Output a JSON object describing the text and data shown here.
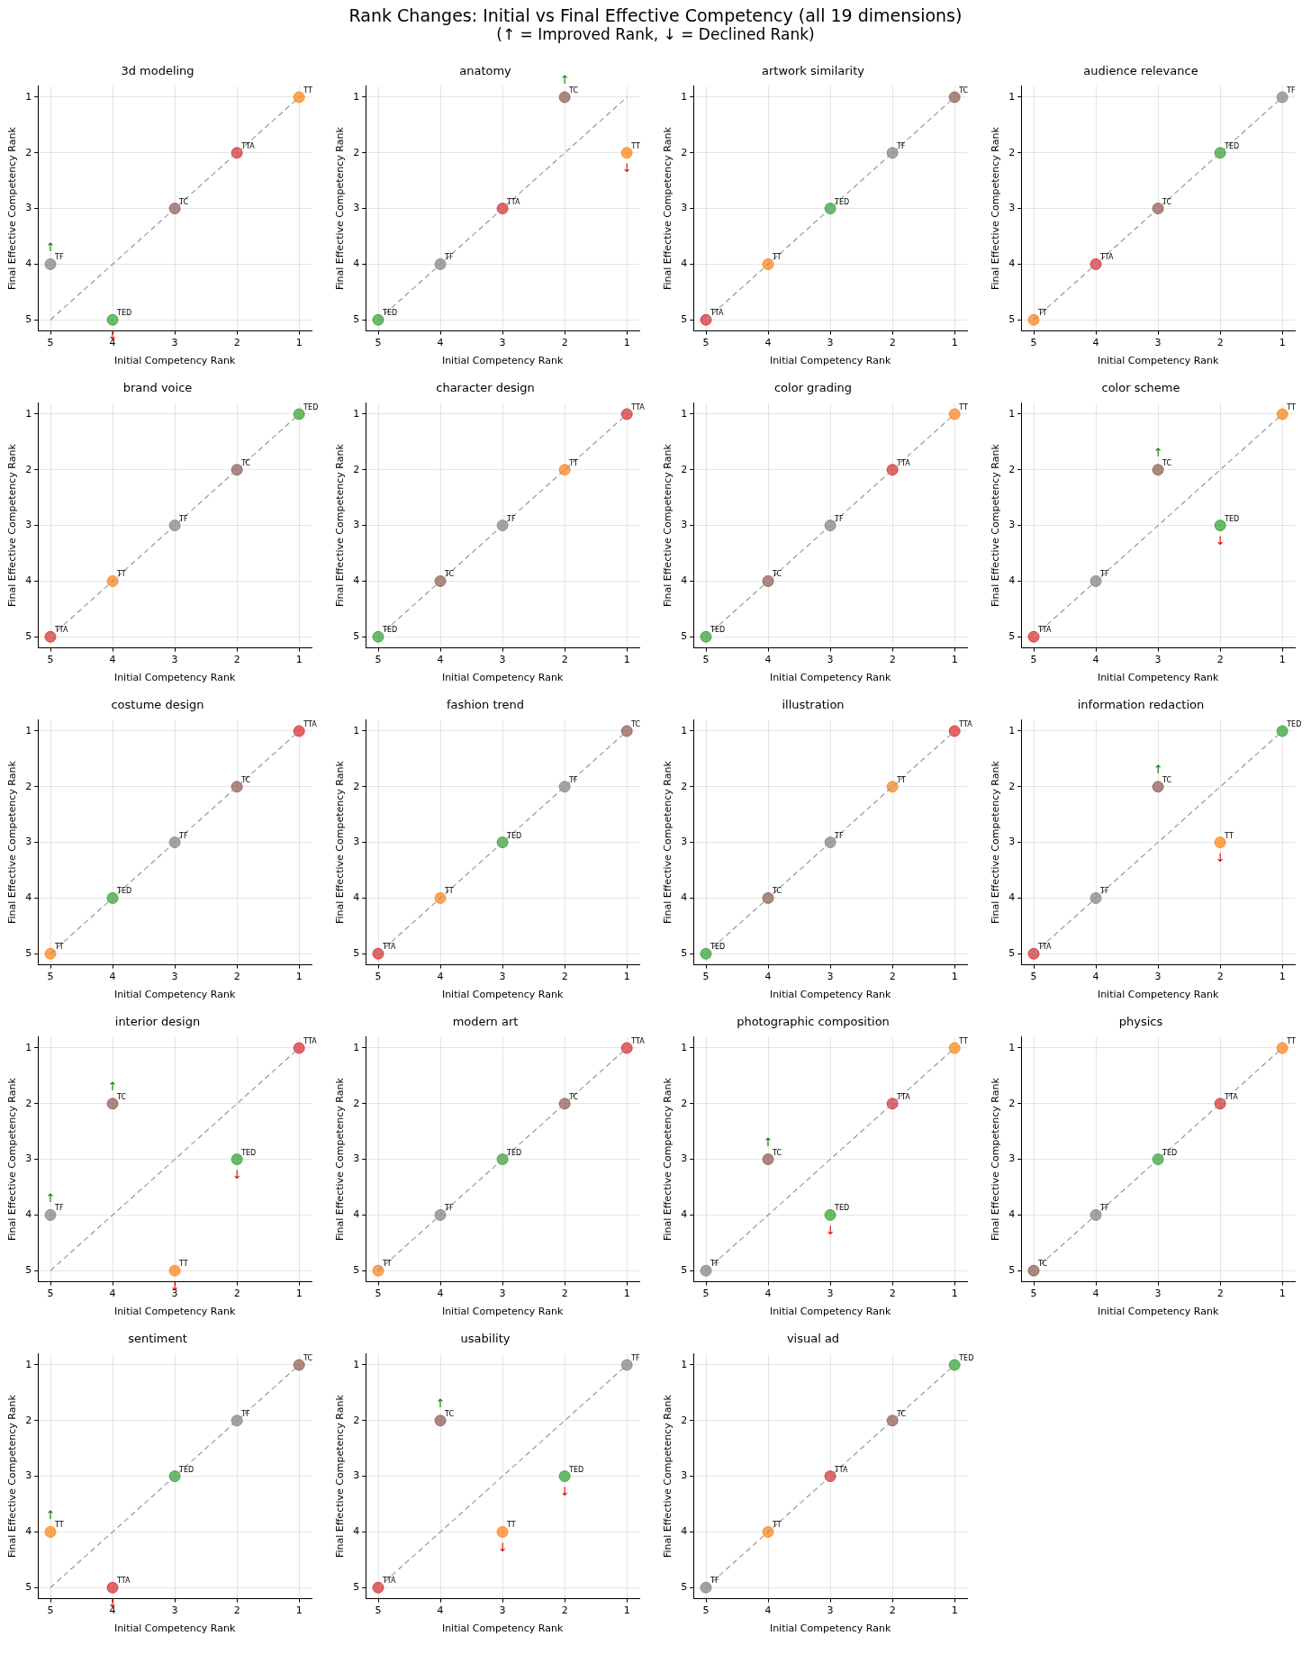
{
  "chart_data": [
    {
      "type": "other",
      "title": "Rank Changes: Initial vs Final Effective Competency (all 19 dimensions)",
      "subtitle": "(↑ = Improved Rank, ↓ = Declined Rank)"
    },
    {
      "type": "scatter",
      "title": "3d modeling",
      "xlabel": "Initial Competency Rank",
      "ylabel": "Final Effective Competency Rank",
      "xlim": [
        5.2,
        0.8
      ],
      "ylim": [
        5.2,
        0.8
      ],
      "xticks": [
        5,
        4,
        3,
        2,
        1
      ],
      "yticks": [
        5,
        4,
        3,
        2,
        1
      ],
      "grid": true,
      "marker": "circle",
      "series": [
        {
          "type": "line",
          "color": "#999999",
          "line_style": "dashed",
          "marker": "none",
          "x": [
            5,
            1
          ],
          "values": [
            5,
            1
          ]
        },
        {
          "name": "TT",
          "color": "#ff7f0e",
          "x": [
            1
          ],
          "values": [
            1
          ]
        },
        {
          "name": "TC",
          "color": "#8c564b",
          "x": [
            3
          ],
          "values": [
            3
          ]
        },
        {
          "name": "TF",
          "color": "#7f7f7f",
          "x": [
            5
          ],
          "values": [
            4
          ]
        },
        {
          "name": "TED",
          "color": "#2ca02c",
          "x": [
            4
          ],
          "values": [
            5
          ]
        },
        {
          "name": "TTA",
          "color": "#d62728",
          "x": [
            2
          ],
          "values": [
            2
          ]
        }
      ],
      "annotations": [
        {
          "text": "↑",
          "x": 5,
          "y": 4
        },
        {
          "text": "↓",
          "x": 4,
          "y": 5
        }
      ]
    },
    {
      "type": "scatter",
      "title": "anatomy",
      "xlabel": "Initial Competency Rank",
      "ylabel": "Final Effective Competency Rank",
      "xlim": [
        5.2,
        0.8
      ],
      "ylim": [
        5.2,
        0.8
      ],
      "xticks": [
        5,
        4,
        3,
        2,
        1
      ],
      "yticks": [
        5,
        4,
        3,
        2,
        1
      ],
      "grid": true,
      "marker": "circle",
      "series": [
        {
          "type": "line",
          "color": "#999999",
          "line_style": "dashed",
          "marker": "none",
          "x": [
            5,
            1
          ],
          "values": [
            5,
            1
          ]
        },
        {
          "name": "TT",
          "color": "#ff7f0e",
          "x": [
            1
          ],
          "values": [
            2
          ]
        },
        {
          "name": "TC",
          "color": "#8c564b",
          "x": [
            2
          ],
          "values": [
            1
          ]
        },
        {
          "name": "TF",
          "color": "#7f7f7f",
          "x": [
            4
          ],
          "values": [
            4
          ]
        },
        {
          "name": "TED",
          "color": "#2ca02c",
          "x": [
            5
          ],
          "values": [
            5
          ]
        },
        {
          "name": "TTA",
          "color": "#d62728",
          "x": [
            3
          ],
          "values": [
            3
          ]
        }
      ],
      "annotations": [
        {
          "text": "↑",
          "x": 2,
          "y": 1
        },
        {
          "text": "↓",
          "x": 1,
          "y": 2
        }
      ]
    },
    {
      "type": "scatter",
      "title": "artwork similarity",
      "xlabel": "Initial Competency Rank",
      "ylabel": "Final Effective Competency Rank",
      "xlim": [
        5.2,
        0.8
      ],
      "ylim": [
        5.2,
        0.8
      ],
      "xticks": [
        5,
        4,
        3,
        2,
        1
      ],
      "yticks": [
        5,
        4,
        3,
        2,
        1
      ],
      "grid": true,
      "marker": "circle",
      "series": [
        {
          "type": "line",
          "color": "#999999",
          "line_style": "dashed",
          "marker": "none",
          "x": [
            5,
            1
          ],
          "values": [
            5,
            1
          ]
        },
        {
          "name": "TT",
          "color": "#ff7f0e",
          "x": [
            4
          ],
          "values": [
            4
          ]
        },
        {
          "name": "TC",
          "color": "#8c564b",
          "x": [
            1
          ],
          "values": [
            1
          ]
        },
        {
          "name": "TF",
          "color": "#7f7f7f",
          "x": [
            2
          ],
          "values": [
            2
          ]
        },
        {
          "name": "TED",
          "color": "#2ca02c",
          "x": [
            3
          ],
          "values": [
            3
          ]
        },
        {
          "name": "TTA",
          "color": "#d62728",
          "x": [
            5
          ],
          "values": [
            5
          ]
        }
      ]
    },
    {
      "type": "scatter",
      "title": "audience relevance",
      "xlabel": "Initial Competency Rank",
      "ylabel": "Final Effective Competency Rank",
      "xlim": [
        5.2,
        0.8
      ],
      "ylim": [
        5.2,
        0.8
      ],
      "xticks": [
        5,
        4,
        3,
        2,
        1
      ],
      "yticks": [
        5,
        4,
        3,
        2,
        1
      ],
      "grid": true,
      "marker": "circle",
      "series": [
        {
          "type": "line",
          "color": "#999999",
          "line_style": "dashed",
          "marker": "none",
          "x": [
            5,
            1
          ],
          "values": [
            5,
            1
          ]
        },
        {
          "name": "TT",
          "color": "#ff7f0e",
          "x": [
            5
          ],
          "values": [
            5
          ]
        },
        {
          "name": "TC",
          "color": "#8c564b",
          "x": [
            3
          ],
          "values": [
            3
          ]
        },
        {
          "name": "TF",
          "color": "#7f7f7f",
          "x": [
            1
          ],
          "values": [
            1
          ]
        },
        {
          "name": "TED",
          "color": "#2ca02c",
          "x": [
            2
          ],
          "values": [
            2
          ]
        },
        {
          "name": "TTA",
          "color": "#d62728",
          "x": [
            4
          ],
          "values": [
            4
          ]
        }
      ]
    },
    {
      "type": "scatter",
      "title": "brand voice",
      "xlabel": "Initial Competency Rank",
      "ylabel": "Final Effective Competency Rank",
      "xlim": [
        5.2,
        0.8
      ],
      "ylim": [
        5.2,
        0.8
      ],
      "xticks": [
        5,
        4,
        3,
        2,
        1
      ],
      "yticks": [
        5,
        4,
        3,
        2,
        1
      ],
      "grid": true,
      "marker": "circle",
      "series": [
        {
          "type": "line",
          "color": "#999999",
          "line_style": "dashed",
          "marker": "none",
          "x": [
            5,
            1
          ],
          "values": [
            5,
            1
          ]
        },
        {
          "name": "TT",
          "color": "#ff7f0e",
          "x": [
            4
          ],
          "values": [
            4
          ]
        },
        {
          "name": "TC",
          "color": "#8c564b",
          "x": [
            2
          ],
          "values": [
            2
          ]
        },
        {
          "name": "TF",
          "color": "#7f7f7f",
          "x": [
            3
          ],
          "values": [
            3
          ]
        },
        {
          "name": "TED",
          "color": "#2ca02c",
          "x": [
            1
          ],
          "values": [
            1
          ]
        },
        {
          "name": "TTA",
          "color": "#d62728",
          "x": [
            5
          ],
          "values": [
            5
          ]
        }
      ]
    },
    {
      "type": "scatter",
      "title": "character design",
      "xlabel": "Initial Competency Rank",
      "ylabel": "Final Effective Competency Rank",
      "xlim": [
        5.2,
        0.8
      ],
      "ylim": [
        5.2,
        0.8
      ],
      "xticks": [
        5,
        4,
        3,
        2,
        1
      ],
      "yticks": [
        5,
        4,
        3,
        2,
        1
      ],
      "grid": true,
      "marker": "circle",
      "series": [
        {
          "type": "line",
          "color": "#999999",
          "line_style": "dashed",
          "marker": "none",
          "x": [
            5,
            1
          ],
          "values": [
            5,
            1
          ]
        },
        {
          "name": "TT",
          "color": "#ff7f0e",
          "x": [
            2
          ],
          "values": [
            2
          ]
        },
        {
          "name": "TC",
          "color": "#8c564b",
          "x": [
            4
          ],
          "values": [
            4
          ]
        },
        {
          "name": "TF",
          "color": "#7f7f7f",
          "x": [
            3
          ],
          "values": [
            3
          ]
        },
        {
          "name": "TED",
          "color": "#2ca02c",
          "x": [
            5
          ],
          "values": [
            5
          ]
        },
        {
          "name": "TTA",
          "color": "#d62728",
          "x": [
            1
          ],
          "values": [
            1
          ]
        }
      ]
    },
    {
      "type": "scatter",
      "title": "color grading",
      "xlabel": "Initial Competency Rank",
      "ylabel": "Final Effective Competency Rank",
      "xlim": [
        5.2,
        0.8
      ],
      "ylim": [
        5.2,
        0.8
      ],
      "xticks": [
        5,
        4,
        3,
        2,
        1
      ],
      "yticks": [
        5,
        4,
        3,
        2,
        1
      ],
      "grid": true,
      "marker": "circle",
      "series": [
        {
          "type": "line",
          "color": "#999999",
          "line_style": "dashed",
          "marker": "none",
          "x": [
            5,
            1
          ],
          "values": [
            5,
            1
          ]
        },
        {
          "name": "TT",
          "color": "#ff7f0e",
          "x": [
            1
          ],
          "values": [
            1
          ]
        },
        {
          "name": "TC",
          "color": "#8c564b",
          "x": [
            4
          ],
          "values": [
            4
          ]
        },
        {
          "name": "TF",
          "color": "#7f7f7f",
          "x": [
            3
          ],
          "values": [
            3
          ]
        },
        {
          "name": "TED",
          "color": "#2ca02c",
          "x": [
            5
          ],
          "values": [
            5
          ]
        },
        {
          "name": "TTA",
          "color": "#d62728",
          "x": [
            2
          ],
          "values": [
            2
          ]
        }
      ]
    },
    {
      "type": "scatter",
      "title": "color scheme",
      "xlabel": "Initial Competency Rank",
      "ylabel": "Final Effective Competency Rank",
      "xlim": [
        5.2,
        0.8
      ],
      "ylim": [
        5.2,
        0.8
      ],
      "xticks": [
        5,
        4,
        3,
        2,
        1
      ],
      "yticks": [
        5,
        4,
        3,
        2,
        1
      ],
      "grid": true,
      "marker": "circle",
      "series": [
        {
          "type": "line",
          "color": "#999999",
          "line_style": "dashed",
          "marker": "none",
          "x": [
            5,
            1
          ],
          "values": [
            5,
            1
          ]
        },
        {
          "name": "TT",
          "color": "#ff7f0e",
          "x": [
            1
          ],
          "values": [
            1
          ]
        },
        {
          "name": "TC",
          "color": "#8c564b",
          "x": [
            3
          ],
          "values": [
            2
          ]
        },
        {
          "name": "TF",
          "color": "#7f7f7f",
          "x": [
            4
          ],
          "values": [
            4
          ]
        },
        {
          "name": "TED",
          "color": "#2ca02c",
          "x": [
            2
          ],
          "values": [
            3
          ]
        },
        {
          "name": "TTA",
          "color": "#d62728",
          "x": [
            5
          ],
          "values": [
            5
          ]
        }
      ],
      "annotations": [
        {
          "text": "↑",
          "x": 3,
          "y": 2
        },
        {
          "text": "↓",
          "x": 2,
          "y": 3
        }
      ]
    },
    {
      "type": "scatter",
      "title": "costume design",
      "xlabel": "Initial Competency Rank",
      "ylabel": "Final Effective Competency Rank",
      "xlim": [
        5.2,
        0.8
      ],
      "ylim": [
        5.2,
        0.8
      ],
      "xticks": [
        5,
        4,
        3,
        2,
        1
      ],
      "yticks": [
        5,
        4,
        3,
        2,
        1
      ],
      "grid": true,
      "marker": "circle",
      "series": [
        {
          "type": "line",
          "color": "#999999",
          "line_style": "dashed",
          "marker": "none",
          "x": [
            5,
            1
          ],
          "values": [
            5,
            1
          ]
        },
        {
          "name": "TT",
          "color": "#ff7f0e",
          "x": [
            5
          ],
          "values": [
            5
          ]
        },
        {
          "name": "TC",
          "color": "#8c564b",
          "x": [
            2
          ],
          "values": [
            2
          ]
        },
        {
          "name": "TF",
          "color": "#7f7f7f",
          "x": [
            3
          ],
          "values": [
            3
          ]
        },
        {
          "name": "TED",
          "color": "#2ca02c",
          "x": [
            4
          ],
          "values": [
            4
          ]
        },
        {
          "name": "TTA",
          "color": "#d62728",
          "x": [
            1
          ],
          "values": [
            1
          ]
        }
      ]
    },
    {
      "type": "scatter",
      "title": "fashion trend",
      "xlabel": "Initial Competency Rank",
      "ylabel": "Final Effective Competency Rank",
      "xlim": [
        5.2,
        0.8
      ],
      "ylim": [
        5.2,
        0.8
      ],
      "xticks": [
        5,
        4,
        3,
        2,
        1
      ],
      "yticks": [
        5,
        4,
        3,
        2,
        1
      ],
      "grid": true,
      "marker": "circle",
      "series": [
        {
          "type": "line",
          "color": "#999999",
          "line_style": "dashed",
          "marker": "none",
          "x": [
            5,
            1
          ],
          "values": [
            5,
            1
          ]
        },
        {
          "name": "TT",
          "color": "#ff7f0e",
          "x": [
            4
          ],
          "values": [
            4
          ]
        },
        {
          "name": "TC",
          "color": "#8c564b",
          "x": [
            1
          ],
          "values": [
            1
          ]
        },
        {
          "name": "TF",
          "color": "#7f7f7f",
          "x": [
            2
          ],
          "values": [
            2
          ]
        },
        {
          "name": "TED",
          "color": "#2ca02c",
          "x": [
            3
          ],
          "values": [
            3
          ]
        },
        {
          "name": "TTA",
          "color": "#d62728",
          "x": [
            5
          ],
          "values": [
            5
          ]
        }
      ]
    },
    {
      "type": "scatter",
      "title": "illustration",
      "xlabel": "Initial Competency Rank",
      "ylabel": "Final Effective Competency Rank",
      "xlim": [
        5.2,
        0.8
      ],
      "ylim": [
        5.2,
        0.8
      ],
      "xticks": [
        5,
        4,
        3,
        2,
        1
      ],
      "yticks": [
        5,
        4,
        3,
        2,
        1
      ],
      "grid": true,
      "marker": "circle",
      "series": [
        {
          "type": "line",
          "color": "#999999",
          "line_style": "dashed",
          "marker": "none",
          "x": [
            5,
            1
          ],
          "values": [
            5,
            1
          ]
        },
        {
          "name": "TT",
          "color": "#ff7f0e",
          "x": [
            2
          ],
          "values": [
            2
          ]
        },
        {
          "name": "TC",
          "color": "#8c564b",
          "x": [
            4
          ],
          "values": [
            4
          ]
        },
        {
          "name": "TF",
          "color": "#7f7f7f",
          "x": [
            3
          ],
          "values": [
            3
          ]
        },
        {
          "name": "TED",
          "color": "#2ca02c",
          "x": [
            5
          ],
          "values": [
            5
          ]
        },
        {
          "name": "TTA",
          "color": "#d62728",
          "x": [
            1
          ],
          "values": [
            1
          ]
        }
      ]
    },
    {
      "type": "scatter",
      "title": "information redaction",
      "xlabel": "Initial Competency Rank",
      "ylabel": "Final Effective Competency Rank",
      "xlim": [
        5.2,
        0.8
      ],
      "ylim": [
        5.2,
        0.8
      ],
      "xticks": [
        5,
        4,
        3,
        2,
        1
      ],
      "yticks": [
        5,
        4,
        3,
        2,
        1
      ],
      "grid": true,
      "marker": "circle",
      "series": [
        {
          "type": "line",
          "color": "#999999",
          "line_style": "dashed",
          "marker": "none",
          "x": [
            5,
            1
          ],
          "values": [
            5,
            1
          ]
        },
        {
          "name": "TT",
          "color": "#ff7f0e",
          "x": [
            2
          ],
          "values": [
            3
          ]
        },
        {
          "name": "TC",
          "color": "#8c564b",
          "x": [
            3
          ],
          "values": [
            2
          ]
        },
        {
          "name": "TF",
          "color": "#7f7f7f",
          "x": [
            4
          ],
          "values": [
            4
          ]
        },
        {
          "name": "TED",
          "color": "#2ca02c",
          "x": [
            1
          ],
          "values": [
            1
          ]
        },
        {
          "name": "TTA",
          "color": "#d62728",
          "x": [
            5
          ],
          "values": [
            5
          ]
        }
      ],
      "annotations": [
        {
          "text": "↑",
          "x": 3,
          "y": 2
        },
        {
          "text": "↓",
          "x": 2,
          "y": 3
        }
      ]
    },
    {
      "type": "scatter",
      "title": "interior design",
      "xlabel": "Initial Competency Rank",
      "ylabel": "Final Effective Competency Rank",
      "xlim": [
        5.2,
        0.8
      ],
      "ylim": [
        5.2,
        0.8
      ],
      "xticks": [
        5,
        4,
        3,
        2,
        1
      ],
      "yticks": [
        5,
        4,
        3,
        2,
        1
      ],
      "grid": true,
      "marker": "circle",
      "series": [
        {
          "type": "line",
          "color": "#999999",
          "line_style": "dashed",
          "marker": "none",
          "x": [
            5,
            1
          ],
          "values": [
            5,
            1
          ]
        },
        {
          "name": "TT",
          "color": "#ff7f0e",
          "x": [
            3
          ],
          "values": [
            5
          ]
        },
        {
          "name": "TC",
          "color": "#8c564b",
          "x": [
            4
          ],
          "values": [
            2
          ]
        },
        {
          "name": "TF",
          "color": "#7f7f7f",
          "x": [
            5
          ],
          "values": [
            4
          ]
        },
        {
          "name": "TED",
          "color": "#2ca02c",
          "x": [
            2
          ],
          "values": [
            3
          ]
        },
        {
          "name": "TTA",
          "color": "#d62728",
          "x": [
            1
          ],
          "values": [
            1
          ]
        }
      ],
      "annotations": [
        {
          "text": "↑",
          "x": 4,
          "y": 2
        },
        {
          "text": "↓",
          "x": 2,
          "y": 3
        },
        {
          "text": "↑",
          "x": 5,
          "y": 4
        },
        {
          "text": "↓",
          "x": 3,
          "y": 5
        }
      ]
    },
    {
      "type": "scatter",
      "title": "modern art",
      "xlabel": "Initial Competency Rank",
      "ylabel": "Final Effective Competency Rank",
      "xlim": [
        5.2,
        0.8
      ],
      "ylim": [
        5.2,
        0.8
      ],
      "xticks": [
        5,
        4,
        3,
        2,
        1
      ],
      "yticks": [
        5,
        4,
        3,
        2,
        1
      ],
      "grid": true,
      "marker": "circle",
      "series": [
        {
          "type": "line",
          "color": "#999999",
          "line_style": "dashed",
          "marker": "none",
          "x": [
            5,
            1
          ],
          "values": [
            5,
            1
          ]
        },
        {
          "name": "TT",
          "color": "#ff7f0e",
          "x": [
            5
          ],
          "values": [
            5
          ]
        },
        {
          "name": "TC",
          "color": "#8c564b",
          "x": [
            2
          ],
          "values": [
            2
          ]
        },
        {
          "name": "TF",
          "color": "#7f7f7f",
          "x": [
            4
          ],
          "values": [
            4
          ]
        },
        {
          "name": "TED",
          "color": "#2ca02c",
          "x": [
            3
          ],
          "values": [
            3
          ]
        },
        {
          "name": "TTA",
          "color": "#d62728",
          "x": [
            1
          ],
          "values": [
            1
          ]
        }
      ]
    },
    {
      "type": "scatter",
      "title": "photographic composition",
      "xlabel": "Initial Competency Rank",
      "ylabel": "Final Effective Competency Rank",
      "xlim": [
        5.2,
        0.8
      ],
      "ylim": [
        5.2,
        0.8
      ],
      "xticks": [
        5,
        4,
        3,
        2,
        1
      ],
      "yticks": [
        5,
        4,
        3,
        2,
        1
      ],
      "grid": true,
      "marker": "circle",
      "series": [
        {
          "type": "line",
          "color": "#999999",
          "line_style": "dashed",
          "marker": "none",
          "x": [
            5,
            1
          ],
          "values": [
            5,
            1
          ]
        },
        {
          "name": "TT",
          "color": "#ff7f0e",
          "x": [
            1
          ],
          "values": [
            1
          ]
        },
        {
          "name": "TC",
          "color": "#8c564b",
          "x": [
            4
          ],
          "values": [
            3
          ]
        },
        {
          "name": "TF",
          "color": "#7f7f7f",
          "x": [
            5
          ],
          "values": [
            5
          ]
        },
        {
          "name": "TED",
          "color": "#2ca02c",
          "x": [
            3
          ],
          "values": [
            4
          ]
        },
        {
          "name": "TTA",
          "color": "#d62728",
          "x": [
            2
          ],
          "values": [
            2
          ]
        }
      ],
      "annotations": [
        {
          "text": "↑",
          "x": 4,
          "y": 3
        },
        {
          "text": "↓",
          "x": 3,
          "y": 4
        }
      ]
    },
    {
      "type": "scatter",
      "title": "physics",
      "xlabel": "Initial Competency Rank",
      "ylabel": "Final Effective Competency Rank",
      "xlim": [
        5.2,
        0.8
      ],
      "ylim": [
        5.2,
        0.8
      ],
      "xticks": [
        5,
        4,
        3,
        2,
        1
      ],
      "yticks": [
        5,
        4,
        3,
        2,
        1
      ],
      "grid": true,
      "marker": "circle",
      "series": [
        {
          "type": "line",
          "color": "#999999",
          "line_style": "dashed",
          "marker": "none",
          "x": [
            5,
            1
          ],
          "values": [
            5,
            1
          ]
        },
        {
          "name": "TT",
          "color": "#ff7f0e",
          "x": [
            1
          ],
          "values": [
            1
          ]
        },
        {
          "name": "TC",
          "color": "#8c564b",
          "x": [
            5
          ],
          "values": [
            5
          ]
        },
        {
          "name": "TF",
          "color": "#7f7f7f",
          "x": [
            4
          ],
          "values": [
            4
          ]
        },
        {
          "name": "TED",
          "color": "#2ca02c",
          "x": [
            3
          ],
          "values": [
            3
          ]
        },
        {
          "name": "TTA",
          "color": "#d62728",
          "x": [
            2
          ],
          "values": [
            2
          ]
        }
      ]
    },
    {
      "type": "scatter",
      "title": "sentiment",
      "xlabel": "Initial Competency Rank",
      "ylabel": "Final Effective Competency Rank",
      "xlim": [
        5.2,
        0.8
      ],
      "ylim": [
        5.2,
        0.8
      ],
      "xticks": [
        5,
        4,
        3,
        2,
        1
      ],
      "yticks": [
        5,
        4,
        3,
        2,
        1
      ],
      "grid": true,
      "marker": "circle",
      "series": [
        {
          "type": "line",
          "color": "#999999",
          "line_style": "dashed",
          "marker": "none",
          "x": [
            5,
            1
          ],
          "values": [
            5,
            1
          ]
        },
        {
          "name": "TT",
          "color": "#ff7f0e",
          "x": [
            5
          ],
          "values": [
            4
          ]
        },
        {
          "name": "TC",
          "color": "#8c564b",
          "x": [
            1
          ],
          "values": [
            1
          ]
        },
        {
          "name": "TF",
          "color": "#7f7f7f",
          "x": [
            2
          ],
          "values": [
            2
          ]
        },
        {
          "name": "TED",
          "color": "#2ca02c",
          "x": [
            3
          ],
          "values": [
            3
          ]
        },
        {
          "name": "TTA",
          "color": "#d62728",
          "x": [
            4
          ],
          "values": [
            5
          ]
        }
      ],
      "annotations": [
        {
          "text": "↑",
          "x": 5,
          "y": 4
        },
        {
          "text": "↓",
          "x": 4,
          "y": 5
        }
      ]
    },
    {
      "type": "scatter",
      "title": "usability",
      "xlabel": "Initial Competency Rank",
      "ylabel": "Final Effective Competency Rank",
      "xlim": [
        5.2,
        0.8
      ],
      "ylim": [
        5.2,
        0.8
      ],
      "xticks": [
        5,
        4,
        3,
        2,
        1
      ],
      "yticks": [
        5,
        4,
        3,
        2,
        1
      ],
      "grid": true,
      "marker": "circle",
      "series": [
        {
          "type": "line",
          "color": "#999999",
          "line_style": "dashed",
          "marker": "none",
          "x": [
            5,
            1
          ],
          "values": [
            5,
            1
          ]
        },
        {
          "name": "TT",
          "color": "#ff7f0e",
          "x": [
            3
          ],
          "values": [
            4
          ]
        },
        {
          "name": "TC",
          "color": "#8c564b",
          "x": [
            4
          ],
          "values": [
            2
          ]
        },
        {
          "name": "TF",
          "color": "#7f7f7f",
          "x": [
            1
          ],
          "values": [
            1
          ]
        },
        {
          "name": "TED",
          "color": "#2ca02c",
          "x": [
            2
          ],
          "values": [
            3
          ]
        },
        {
          "name": "TTA",
          "color": "#d62728",
          "x": [
            5
          ],
          "values": [
            5
          ]
        }
      ],
      "annotations": [
        {
          "text": "↑",
          "x": 4,
          "y": 2
        },
        {
          "text": "↓",
          "x": 2,
          "y": 3
        },
        {
          "text": "↓",
          "x": 3,
          "y": 4
        }
      ]
    },
    {
      "type": "scatter",
      "title": "visual ad",
      "xlabel": "Initial Competency Rank",
      "ylabel": "Final Effective Competency Rank",
      "xlim": [
        5.2,
        0.8
      ],
      "ylim": [
        5.2,
        0.8
      ],
      "xticks": [
        5,
        4,
        3,
        2,
        1
      ],
      "yticks": [
        5,
        4,
        3,
        2,
        1
      ],
      "grid": true,
      "marker": "circle",
      "series": [
        {
          "type": "line",
          "color": "#999999",
          "line_style": "dashed",
          "marker": "none",
          "x": [
            5,
            1
          ],
          "values": [
            5,
            1
          ]
        },
        {
          "name": "TT",
          "color": "#ff7f0e",
          "x": [
            4
          ],
          "values": [
            4
          ]
        },
        {
          "name": "TC",
          "color": "#8c564b",
          "x": [
            2
          ],
          "values": [
            2
          ]
        },
        {
          "name": "TF",
          "color": "#7f7f7f",
          "x": [
            5
          ],
          "values": [
            5
          ]
        },
        {
          "name": "TED",
          "color": "#2ca02c",
          "x": [
            1
          ],
          "values": [
            1
          ]
        },
        {
          "name": "TTA",
          "color": "#d62728",
          "x": [
            3
          ],
          "values": [
            3
          ]
        }
      ]
    }
  ]
}
